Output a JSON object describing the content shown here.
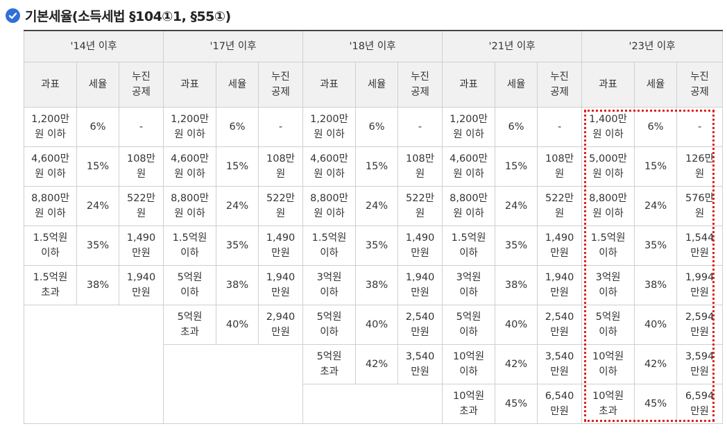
{
  "title": "기본세율(소득세법 §104①1, §55①)",
  "icon": "check-circle-icon",
  "accent_color": "#2f6fd8",
  "highlight_color": "#e02020",
  "periods": [
    "'14년 이후",
    "'17년 이후",
    "'18년 이후",
    "'21년 이후",
    "'23년 이후"
  ],
  "col_headers": {
    "base": "과표",
    "rate": "세율",
    "deduction": "누진\n공제"
  },
  "tables": [
    [
      [
        "1,200만\n원 이하",
        "6%",
        "-"
      ],
      [
        "4,600만\n원 이하",
        "15%",
        "108만\n원"
      ],
      [
        "8,800만\n원 이하",
        "24%",
        "522만\n원"
      ],
      [
        "1.5억원\n이하",
        "35%",
        "1,490\n만원"
      ],
      [
        "1.5억원\n초과",
        "38%",
        "1,940\n만원"
      ]
    ],
    [
      [
        "1,200만\n원 이하",
        "6%",
        "-"
      ],
      [
        "4,600만\n원 이하",
        "15%",
        "108만\n원"
      ],
      [
        "8,800만\n원 이하",
        "24%",
        "522만\n원"
      ],
      [
        "1.5억원\n이하",
        "35%",
        "1,490\n만원"
      ],
      [
        "5억원\n이하",
        "38%",
        "1,940\n만원"
      ],
      [
        "5억원\n초과",
        "40%",
        "2,940\n만원"
      ]
    ],
    [
      [
        "1,200만\n원 이하",
        "6%",
        "-"
      ],
      [
        "4,600만\n원 이하",
        "15%",
        "108만\n원"
      ],
      [
        "8,800만\n원 이하",
        "24%",
        "522만\n원"
      ],
      [
        "1.5억원\n이하",
        "35%",
        "1,490\n만원"
      ],
      [
        "3억원\n이하",
        "38%",
        "1,940\n만원"
      ],
      [
        "5억원\n이하",
        "40%",
        "2,540\n만원"
      ],
      [
        "5억원\n초과",
        "42%",
        "3,540\n만원"
      ]
    ],
    [
      [
        "1,200만\n원 이하",
        "6%",
        "-"
      ],
      [
        "4,600만\n원 이하",
        "15%",
        "108만\n원"
      ],
      [
        "8,800만\n원 이하",
        "24%",
        "522만\n원"
      ],
      [
        "1.5억원\n이하",
        "35%",
        "1,490\n만원"
      ],
      [
        "3억원\n이하",
        "38%",
        "1,940\n만원"
      ],
      [
        "5억원\n이하",
        "40%",
        "2,540\n만원"
      ],
      [
        "10억원\n이하",
        "42%",
        "3,540\n만원"
      ],
      [
        "10억원\n초과",
        "45%",
        "6,540\n만원"
      ]
    ],
    [
      [
        "1,400만\n원 이하",
        "6%",
        "-"
      ],
      [
        "5,000만\n원 이하",
        "15%",
        "126만\n원"
      ],
      [
        "8,800만\n원 이하",
        "24%",
        "576만\n원"
      ],
      [
        "1.5억원\n이하",
        "35%",
        "1,544\n만원"
      ],
      [
        "3억원\n이하",
        "38%",
        "1,994\n만원"
      ],
      [
        "5억원\n이하",
        "40%",
        "2,594\n만원"
      ],
      [
        "10억원\n이하",
        "42%",
        "3,594\n만원"
      ],
      [
        "10억원\n초과",
        "45%",
        "6,594\n만원"
      ]
    ]
  ]
}
